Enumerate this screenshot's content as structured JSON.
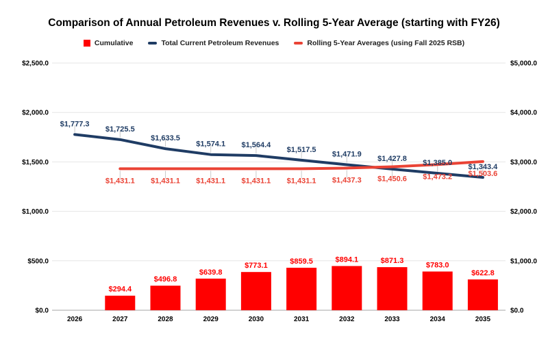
{
  "chart_data": {
    "type": "bar",
    "title": "Comparison of Annual Petroleum Revenues v. Rolling 5-Year Average (starting with FY26)",
    "categories": [
      "2026",
      "2027",
      "2028",
      "2029",
      "2030",
      "2031",
      "2032",
      "2033",
      "2034",
      "2035"
    ],
    "left_axis": {
      "min": 0,
      "max": 2500,
      "tick_values": [
        0,
        500,
        1000,
        1500,
        2000,
        2500
      ],
      "tick_labels": [
        "$0.0",
        "$500.0",
        "$1,000.0",
        "$1,500.0",
        "$2,000.0",
        "$2,500.0"
      ]
    },
    "right_axis": {
      "min": 0,
      "max": 5000,
      "tick_values": [
        0,
        1000,
        2000,
        3000,
        4000,
        5000
      ],
      "tick_labels": [
        "$0.0",
        "$1,000.0",
        "$2,000.0",
        "$3,000.0",
        "$4,000.0",
        "$5,000.0"
      ]
    },
    "grid_on": true,
    "legend_position": "top",
    "series": [
      {
        "name": "Cumulative",
        "type": "bar",
        "axis": "right",
        "color": "#ff0000",
        "label_color": "#ff0000",
        "values": [
          null,
          294.4,
          496.8,
          639.8,
          773.1,
          859.5,
          894.1,
          871.3,
          783.0,
          622.8
        ],
        "labels": [
          null,
          "$294.4",
          "$496.8",
          "$639.8",
          "$773.1",
          "$859.5",
          "$894.1",
          "$871.3",
          "$783.0",
          "$622.8"
        ]
      },
      {
        "name": "Total Current Petroleum Revenues",
        "type": "line",
        "axis": "left",
        "color": "#1f3c64",
        "label_color": "#1f3c64",
        "label_position": "above",
        "values": [
          1777.3,
          1725.5,
          1633.5,
          1574.1,
          1564.4,
          1517.5,
          1471.9,
          1427.8,
          1385.0,
          1343.4
        ],
        "labels": [
          "$1,777.3",
          "$1,725.5",
          "$1,633.5",
          "$1,574.1",
          "$1,564.4",
          "$1,517.5",
          "$1,471.9",
          "$1,427.8",
          "$1,385.0",
          "$1,343.4"
        ]
      },
      {
        "name": "Rolling 5-Year Averages (using Fall 2025 RSB)",
        "type": "line",
        "axis": "left",
        "color": "#ea4335",
        "label_color": "#ea4335",
        "label_position": "below",
        "values": [
          null,
          1431.1,
          1431.1,
          1431.1,
          1431.1,
          1431.1,
          1437.3,
          1450.6,
          1473.2,
          1503.6
        ],
        "labels": [
          null,
          "$1,431.1",
          "$1,431.1",
          "$1,431.1",
          "$1,431.1",
          "$1,431.1",
          "$1,437.3",
          "$1,450.6",
          "$1,473.2",
          "$1,503.6"
        ]
      }
    ],
    "colors": {
      "gridline": "#e6e6e6",
      "zero_axis": "#a6a6a6",
      "annotation_stem": "#c9c9c9",
      "axis_text": "#000000"
    }
  }
}
